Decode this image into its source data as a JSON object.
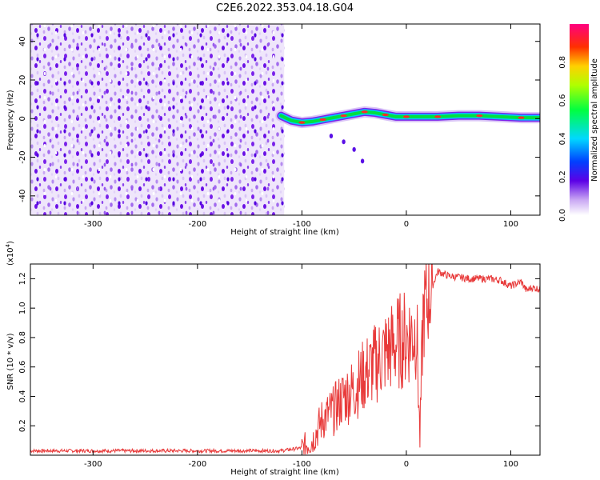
{
  "title": "C2E6.2022.353.04.18.G04",
  "chart_data": [
    {
      "type": "heatmap",
      "xlabel": "Height of straight line (km)",
      "ylabel": "Frequency (Hz)",
      "xlim": [
        -360,
        128
      ],
      "ylim": [
        -50,
        49
      ],
      "xticks": [
        -300,
        -200,
        -100,
        0,
        100
      ],
      "yticks": [
        -40,
        -20,
        0,
        20,
        40
      ],
      "colorbar": {
        "label": "Normalized spectral amplitude",
        "range": [
          0.0,
          1.0
        ],
        "ticks": [
          "0.0",
          "0.2",
          "0.4",
          "0.6",
          "0.8"
        ]
      },
      "noise_region_x": [
        -360,
        -117
      ],
      "signal_trace": {
        "x": [
          -120,
          -110,
          -100,
          -90,
          -80,
          -70,
          -60,
          -50,
          -40,
          -30,
          -20,
          -10,
          0,
          10,
          30,
          50,
          70,
          90,
          110,
          128
        ],
        "frequency": [
          1.5,
          -1.0,
          -2.0,
          -1.5,
          -0.5,
          0.5,
          1.5,
          2.5,
          3.5,
          3.0,
          2.0,
          1.0,
          1.0,
          1.0,
          1.0,
          1.5,
          1.5,
          1.0,
          0.5,
          0.5
        ]
      },
      "secondary_trace": {
        "x": [
          -72,
          -60,
          -50,
          -42
        ],
        "frequency": [
          -9,
          -12,
          -16,
          -22
        ]
      }
    },
    {
      "type": "line",
      "ylabel": "SNR (10 * v/v)",
      "xlabel": "Height of straight line (km)",
      "y_multiplier": "(x10",
      "y_multiplier_exponent": "4",
      "y_multiplier_suffix": ")",
      "xlim": [
        -360,
        128
      ],
      "ylim": [
        0,
        1.3
      ],
      "xticks": [
        -300,
        -200,
        -100,
        0,
        100
      ],
      "yticks": [
        "0.2",
        "0.4",
        "0.6",
        "0.8",
        "1.0",
        "1.2"
      ],
      "line_color": "#e83a3a",
      "series": [
        {
          "x": [
            -360,
            -320,
            -280,
            -240,
            -200,
            -160,
            -120,
            -100,
            -90,
            -80,
            -70,
            -60,
            -50,
            -40,
            -30,
            -20,
            -10,
            0,
            10,
            13,
            16,
            20,
            25,
            30,
            40,
            60,
            80,
            90,
            100,
            110,
            115,
            120,
            128
          ],
          "values": [
            0.03,
            0.03,
            0.03,
            0.03,
            0.03,
            0.03,
            0.03,
            0.05,
            0.1,
            0.25,
            0.3,
            0.4,
            0.45,
            0.55,
            0.62,
            0.7,
            0.76,
            0.8,
            0.85,
            0.1,
            0.95,
            1.05,
            1.15,
            1.25,
            1.22,
            1.2,
            1.2,
            1.19,
            1.15,
            1.18,
            1.12,
            1.14,
            1.13
          ]
        }
      ]
    }
  ]
}
